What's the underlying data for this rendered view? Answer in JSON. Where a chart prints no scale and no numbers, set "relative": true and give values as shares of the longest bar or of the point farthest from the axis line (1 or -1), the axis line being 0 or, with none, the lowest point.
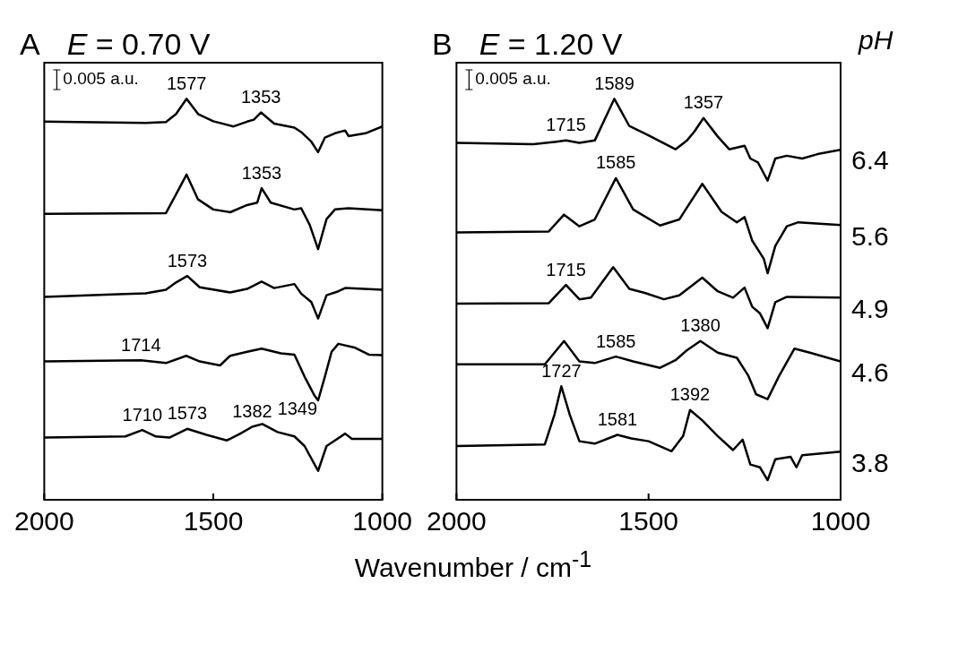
{
  "chart_data": [
    {
      "type": "line",
      "title": "A",
      "subtitle": "E = 0.70 V",
      "xlabel": "Wavenumber / cm$^{-1}$",
      "relative": true,
      "xlim": [
        2000,
        1000
      ],
      "xticks": [
        2000,
        1500,
        1000
      ],
      "grid": false,
      "marker": "none",
      "line_style": "solid",
      "annotations": [
        "0.005 a.u.",
        {
          "text": "1577",
          "x": 1579,
          "y": 1.0
        },
        {
          "text": "1353",
          "x": 1359,
          "y": 0.966
        },
        {
          "text": "1353",
          "x": 1357,
          "y": 0.777
        },
        {
          "text": "1573",
          "x": 1577,
          "y": 0.558
        },
        {
          "text": "1714",
          "x": 1714,
          "y": 0.348
        },
        {
          "text": "1710",
          "x": 1710,
          "y": 0.174
        },
        {
          "text": "1573",
          "x": 1577,
          "y": 0.177
        },
        {
          "text": "1382",
          "x": 1385,
          "y": 0.182
        },
        {
          "text": "1349",
          "x": 1355,
          "y": 0.189
        }
      ],
      "series": [
        {
          "color": "#000000",
          "x": [
            2000,
            1700,
            1640,
            1610,
            1579,
            1545,
            1500,
            1440,
            1400,
            1380,
            1359,
            1320,
            1260,
            1240,
            1210,
            1190,
            1170,
            1140,
            1110,
            1100,
            1050,
            1000
          ],
          "values": [
            0.943,
            0.94,
            0.942,
            0.962,
            1.0,
            0.962,
            0.944,
            0.931,
            0.943,
            0.948,
            0.966,
            0.938,
            0.928,
            0.917,
            0.893,
            0.867,
            0.903,
            0.914,
            0.921,
            0.907,
            0.914,
            0.931
          ]
        },
        {
          "color": "#000000",
          "x": [
            2000,
            1640,
            1610,
            1579,
            1545,
            1500,
            1450,
            1400,
            1370,
            1357,
            1330,
            1260,
            1240,
            1215,
            1190,
            1165,
            1140,
            1100,
            1000
          ],
          "values": [
            0.713,
            0.715,
            0.762,
            0.811,
            0.749,
            0.724,
            0.717,
            0.735,
            0.741,
            0.777,
            0.741,
            0.724,
            0.727,
            0.686,
            0.625,
            0.7,
            0.724,
            0.727,
            0.722
          ]
        },
        {
          "color": "#000000",
          "x": [
            2000,
            1800,
            1700,
            1640,
            1610,
            1577,
            1540,
            1450,
            1400,
            1357,
            1320,
            1260,
            1240,
            1210,
            1190,
            1165,
            1130,
            1110,
            1000
          ],
          "values": [
            0.506,
            0.512,
            0.515,
            0.524,
            0.542,
            0.558,
            0.53,
            0.517,
            0.526,
            0.544,
            0.528,
            0.538,
            0.514,
            0.493,
            0.452,
            0.51,
            0.52,
            0.528,
            0.524
          ]
        },
        {
          "color": "#000000",
          "x": [
            2000,
            1714,
            1640,
            1580,
            1540,
            1480,
            1450,
            1400,
            1357,
            1300,
            1260,
            1230,
            1200,
            1190,
            1170,
            1150,
            1130,
            1080,
            1040,
            1000
          ],
          "values": [
            0.345,
            0.348,
            0.341,
            0.359,
            0.345,
            0.335,
            0.359,
            0.369,
            0.377,
            0.365,
            0.362,
            0.307,
            0.259,
            0.248,
            0.307,
            0.369,
            0.389,
            0.379,
            0.362,
            0.361
          ]
        },
        {
          "color": "#000000",
          "x": [
            2000,
            1760,
            1710,
            1670,
            1630,
            1577,
            1520,
            1460,
            1420,
            1385,
            1355,
            1310,
            1260,
            1230,
            1190,
            1165,
            1140,
            1110,
            1090,
            1000
          ],
          "values": [
            0.155,
            0.158,
            0.174,
            0.158,
            0.155,
            0.177,
            0.162,
            0.148,
            0.165,
            0.182,
            0.189,
            0.169,
            0.158,
            0.134,
            0.072,
            0.134,
            0.148,
            0.165,
            0.152,
            0.152
          ]
        }
      ]
    },
    {
      "type": "line",
      "title": "B",
      "subtitle": "E = 1.20 V",
      "legend_title": "pH",
      "relative": true,
      "xlim": [
        2000,
        1000
      ],
      "xticks": [
        2000,
        1500,
        1000
      ],
      "grid": false,
      "marker": "none",
      "line_style": "solid",
      "annotations": [
        "0.005 a.u.",
        {
          "text": "1715",
          "x": 1715,
          "y": 0.896
        },
        {
          "text": "1589",
          "x": 1589,
          "y": 1.0
        },
        {
          "text": "1357",
          "x": 1357,
          "y": 0.952
        },
        {
          "text": "1585",
          "x": 1585,
          "y": 0.802
        },
        {
          "text": "1715",
          "x": 1715,
          "y": 0.536
        },
        {
          "text": "1585",
          "x": 1585,
          "y": 0.357
        },
        {
          "text": "1380",
          "x": 1365,
          "y": 0.396
        },
        {
          "text": "1727",
          "x": 1727,
          "y": 0.283
        },
        {
          "text": "1581",
          "x": 1581,
          "y": 0.162
        },
        {
          "text": "1392",
          "x": 1392,
          "y": 0.224
        }
      ],
      "series": [
        {
          "name": "6.4",
          "color": "#000000",
          "x": [
            2000,
            1800,
            1740,
            1715,
            1680,
            1640,
            1589,
            1550,
            1500,
            1430,
            1400,
            1380,
            1357,
            1320,
            1290,
            1250,
            1235,
            1215,
            1190,
            1170,
            1140,
            1100,
            1060,
            1000
          ],
          "values": [
            0.89,
            0.887,
            0.893,
            0.896,
            0.89,
            0.896,
            1.0,
            0.932,
            0.909,
            0.874,
            0.896,
            0.919,
            0.952,
            0.906,
            0.874,
            0.883,
            0.851,
            0.841,
            0.796,
            0.851,
            0.858,
            0.851,
            0.862,
            0.873
          ]
        },
        {
          "name": "5.6",
          "color": "#000000",
          "x": [
            2000,
            1760,
            1720,
            1680,
            1640,
            1585,
            1540,
            1470,
            1420,
            1360,
            1310,
            1270,
            1250,
            1230,
            1200,
            1190,
            1170,
            1140,
            1110,
            1000
          ],
          "values": [
            0.667,
            0.669,
            0.711,
            0.682,
            0.699,
            0.802,
            0.724,
            0.684,
            0.699,
            0.788,
            0.718,
            0.692,
            0.705,
            0.646,
            0.601,
            0.565,
            0.633,
            0.682,
            0.692,
            0.685
          ]
        },
        {
          "name": "4.9",
          "color": "#000000",
          "x": [
            2000,
            1760,
            1715,
            1680,
            1650,
            1592,
            1550,
            1510,
            1460,
            1420,
            1360,
            1320,
            1280,
            1250,
            1230,
            1210,
            1190,
            1170,
            1140,
            1000
          ],
          "values": [
            0.489,
            0.49,
            0.536,
            0.5,
            0.504,
            0.58,
            0.526,
            0.516,
            0.5,
            0.51,
            0.554,
            0.52,
            0.504,
            0.529,
            0.481,
            0.465,
            0.428,
            0.493,
            0.506,
            0.504
          ]
        },
        {
          "name": "4.6",
          "color": "#000000",
          "x": [
            2000,
            1770,
            1720,
            1680,
            1640,
            1585,
            1540,
            1470,
            1430,
            1400,
            1365,
            1320,
            1270,
            1240,
            1220,
            1190,
            1160,
            1120,
            1080,
            1000
          ],
          "values": [
            0.338,
            0.338,
            0.396,
            0.345,
            0.341,
            0.357,
            0.345,
            0.329,
            0.348,
            0.373,
            0.396,
            0.367,
            0.354,
            0.309,
            0.263,
            0.251,
            0.309,
            0.377,
            0.367,
            0.345
          ]
        },
        {
          "name": "3.8",
          "color": "#000000",
          "x": [
            2000,
            1770,
            1745,
            1727,
            1705,
            1680,
            1640,
            1581,
            1545,
            1500,
            1440,
            1410,
            1392,
            1360,
            1320,
            1280,
            1255,
            1235,
            1210,
            1190,
            1170,
            1130,
            1115,
            1100,
            1000
          ],
          "values": [
            0.134,
            0.138,
            0.212,
            0.283,
            0.212,
            0.146,
            0.14,
            0.162,
            0.153,
            0.146,
            0.121,
            0.159,
            0.224,
            0.198,
            0.159,
            0.124,
            0.15,
            0.088,
            0.081,
            0.049,
            0.101,
            0.107,
            0.081,
            0.111,
            0.12
          ]
        }
      ]
    }
  ]
}
